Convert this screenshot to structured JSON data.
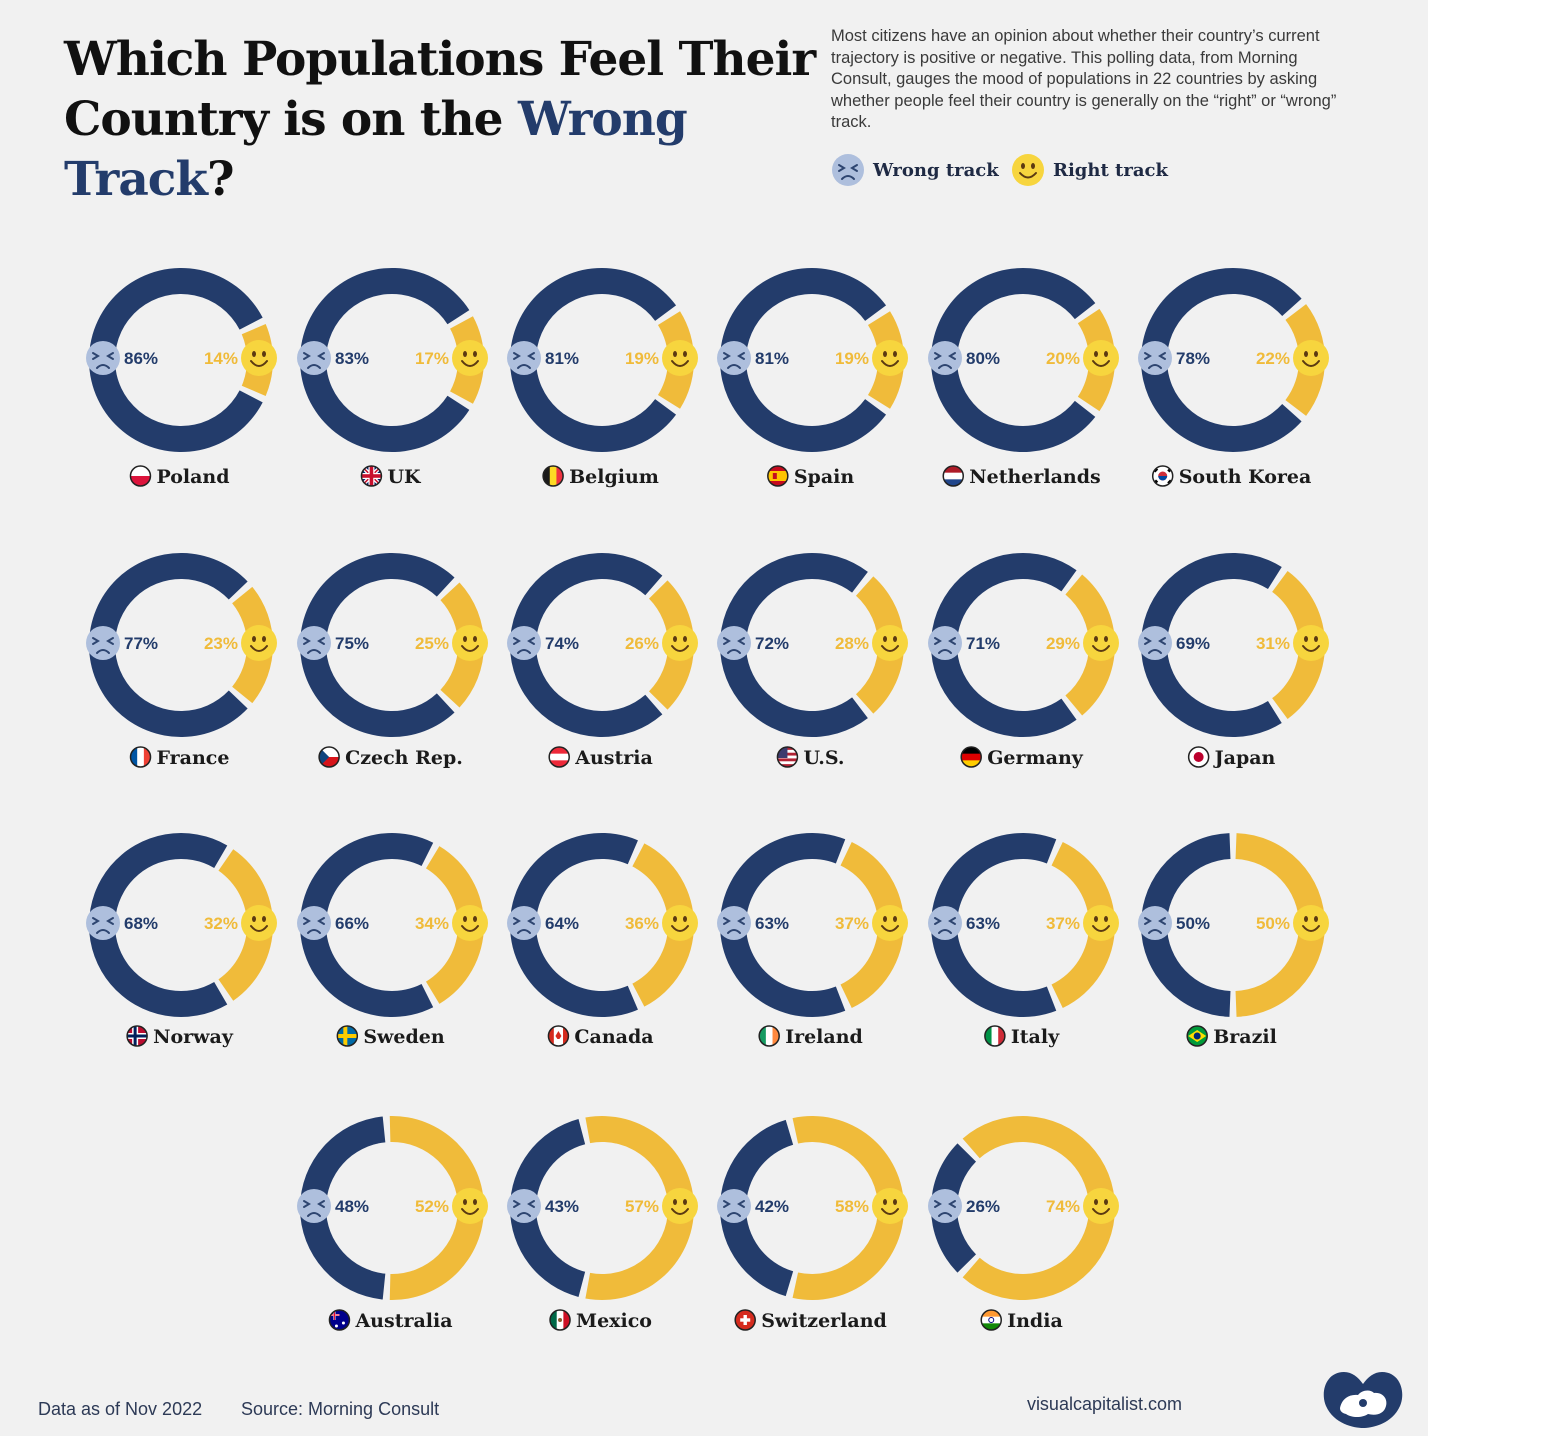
{
  "header": {
    "title_line1": "Which Populations Feel Their",
    "title_line2_prefix": "Country is on the ",
    "title_highlight": "Wrong Track",
    "title_suffix": "?",
    "intro": "Most citizens have an opinion about whether their country’s current trajectory is positive or negative. This polling data, from Morning Consult, gauges the mood of populations in 22 countries by asking whether people feel their country is generally on the “right” or “wrong” track."
  },
  "legend": {
    "wrong_label": "Wrong track",
    "right_label": "Right track",
    "wrong_icon": "sad-face-icon",
    "right_icon": "smiley-face-icon"
  },
  "colors": {
    "wrong": "#233c6b",
    "right": "#f0bb3a",
    "background": "#f1f1f1"
  },
  "chart_data": {
    "type": "pie",
    "subtype": "donut-small-multiples",
    "series_names": [
      "Wrong track",
      "Right track"
    ],
    "unit": "%",
    "countries": [
      {
        "name": "Poland",
        "wrong": 86,
        "right": 14,
        "wrong_label": "86%",
        "right_label": "14%",
        "flag": "poland"
      },
      {
        "name": "UK",
        "wrong": 83,
        "right": 17,
        "wrong_label": "83%",
        "right_label": "17%",
        "flag": "uk"
      },
      {
        "name": "Belgium",
        "wrong": 81,
        "right": 19,
        "wrong_label": "81%",
        "right_label": "19%",
        "flag": "belgium"
      },
      {
        "name": "Spain",
        "wrong": 81,
        "right": 19,
        "wrong_label": "81%",
        "right_label": "19%",
        "flag": "spain"
      },
      {
        "name": "Netherlands",
        "wrong": 80,
        "right": 20,
        "wrong_label": "80%",
        "right_label": "20%",
        "flag": "netherlands"
      },
      {
        "name": "South Korea",
        "wrong": 78,
        "right": 22,
        "wrong_label": "78%",
        "right_label": "22%",
        "flag": "south-korea"
      },
      {
        "name": "France",
        "wrong": 77,
        "right": 23,
        "wrong_label": "77%",
        "right_label": "23%",
        "flag": "france"
      },
      {
        "name": "Czech Rep.",
        "wrong": 75,
        "right": 25,
        "wrong_label": "75%",
        "right_label": "25%",
        "flag": "czech"
      },
      {
        "name": "Austria",
        "wrong": 74,
        "right": 26,
        "wrong_label": "74%",
        "right_label": "26%",
        "flag": "austria"
      },
      {
        "name": "U.S.",
        "wrong": 72,
        "right": 28,
        "wrong_label": "72%",
        "right_label": "28%",
        "flag": "us"
      },
      {
        "name": "Germany",
        "wrong": 71,
        "right": 29,
        "wrong_label": "71%",
        "right_label": "29%",
        "flag": "germany"
      },
      {
        "name": "Japan",
        "wrong": 69,
        "right": 31,
        "wrong_label": "69%",
        "right_label": "31%",
        "flag": "japan"
      },
      {
        "name": "Norway",
        "wrong": 68,
        "right": 32,
        "wrong_label": "68%",
        "right_label": "32%",
        "flag": "norway"
      },
      {
        "name": "Sweden",
        "wrong": 66,
        "right": 34,
        "wrong_label": "66%",
        "right_label": "34%",
        "flag": "sweden"
      },
      {
        "name": "Canada",
        "wrong": 64,
        "right": 36,
        "wrong_label": "64%",
        "right_label": "36%",
        "flag": "canada"
      },
      {
        "name": "Ireland",
        "wrong": 63,
        "right": 37,
        "wrong_label": "63%",
        "right_label": "37%",
        "flag": "ireland"
      },
      {
        "name": "Italy",
        "wrong": 63,
        "right": 37,
        "wrong_label": "63%",
        "right_label": "37%",
        "flag": "italy"
      },
      {
        "name": "Brazil",
        "wrong": 50,
        "right": 50,
        "wrong_label": "50%",
        "right_label": "50%",
        "flag": "brazil"
      },
      {
        "name": "Australia",
        "wrong": 48,
        "right": 52,
        "wrong_label": "48%",
        "right_label": "52%",
        "flag": "australia"
      },
      {
        "name": "Mexico",
        "wrong": 43,
        "right": 57,
        "wrong_label": "43%",
        "right_label": "57%",
        "flag": "mexico"
      },
      {
        "name": "Switzerland",
        "wrong": 42,
        "right": 58,
        "wrong_label": "42%",
        "right_label": "58%",
        "flag": "switzerland"
      },
      {
        "name": "India",
        "wrong": 26,
        "right": 74,
        "wrong_label": "26%",
        "right_label": "74%",
        "flag": "india"
      }
    ]
  },
  "footer": {
    "date": "Data as of Nov 2022",
    "source": "Source: Morning Consult",
    "site": "visualcapitalist.com",
    "logo_icon": "visual-capitalist-logo-icon"
  }
}
